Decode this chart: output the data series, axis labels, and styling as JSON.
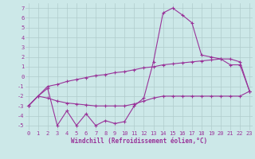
{
  "xlabel": "Windchill (Refroidissement éolien,°C)",
  "background_color": "#cce8e8",
  "grid_color": "#b0cccc",
  "line_color": "#993399",
  "x": [
    0,
    1,
    2,
    3,
    4,
    5,
    6,
    7,
    8,
    9,
    10,
    11,
    12,
    13,
    14,
    15,
    16,
    17,
    18,
    19,
    20,
    21,
    22,
    23
  ],
  "y_main": [
    -3.0,
    -2.0,
    -1.2,
    -5.0,
    -3.5,
    -5.0,
    -3.8,
    -5.0,
    -4.5,
    -4.8,
    -4.6,
    -3.0,
    -2.2,
    1.5,
    6.5,
    7.0,
    6.3,
    5.5,
    2.2,
    2.0,
    1.8,
    1.2,
    1.2,
    -1.5
  ],
  "y_upper": [
    -3.0,
    -2.0,
    -1.0,
    -0.8,
    -0.5,
    -0.3,
    -0.1,
    0.1,
    0.2,
    0.4,
    0.5,
    0.7,
    0.9,
    1.0,
    1.2,
    1.3,
    1.4,
    1.5,
    1.6,
    1.7,
    1.8,
    1.8,
    1.5,
    -1.5
  ],
  "y_lower": [
    -3.0,
    -2.0,
    -2.2,
    -2.5,
    -2.7,
    -2.8,
    -2.9,
    -3.0,
    -3.0,
    -3.0,
    -3.0,
    -2.8,
    -2.5,
    -2.2,
    -2.0,
    -2.0,
    -2.0,
    -2.0,
    -2.0,
    -2.0,
    -2.0,
    -2.0,
    -2.0,
    -1.5
  ],
  "ylim": [
    -5.5,
    7.5
  ],
  "yticks": [
    -5,
    -4,
    -3,
    -2,
    -1,
    0,
    1,
    2,
    3,
    4,
    5,
    6,
    7
  ],
  "xticks": [
    0,
    1,
    2,
    3,
    4,
    5,
    6,
    7,
    8,
    9,
    10,
    11,
    12,
    13,
    14,
    15,
    16,
    17,
    18,
    19,
    20,
    21,
    22,
    23
  ],
  "xlim": [
    -0.3,
    23.3
  ],
  "marker": "+",
  "markersize": 3,
  "linewidth": 0.8,
  "tick_fontsize": 5,
  "xlabel_fontsize": 5.5,
  "font_color": "#993399",
  "tick_color": "#993399"
}
